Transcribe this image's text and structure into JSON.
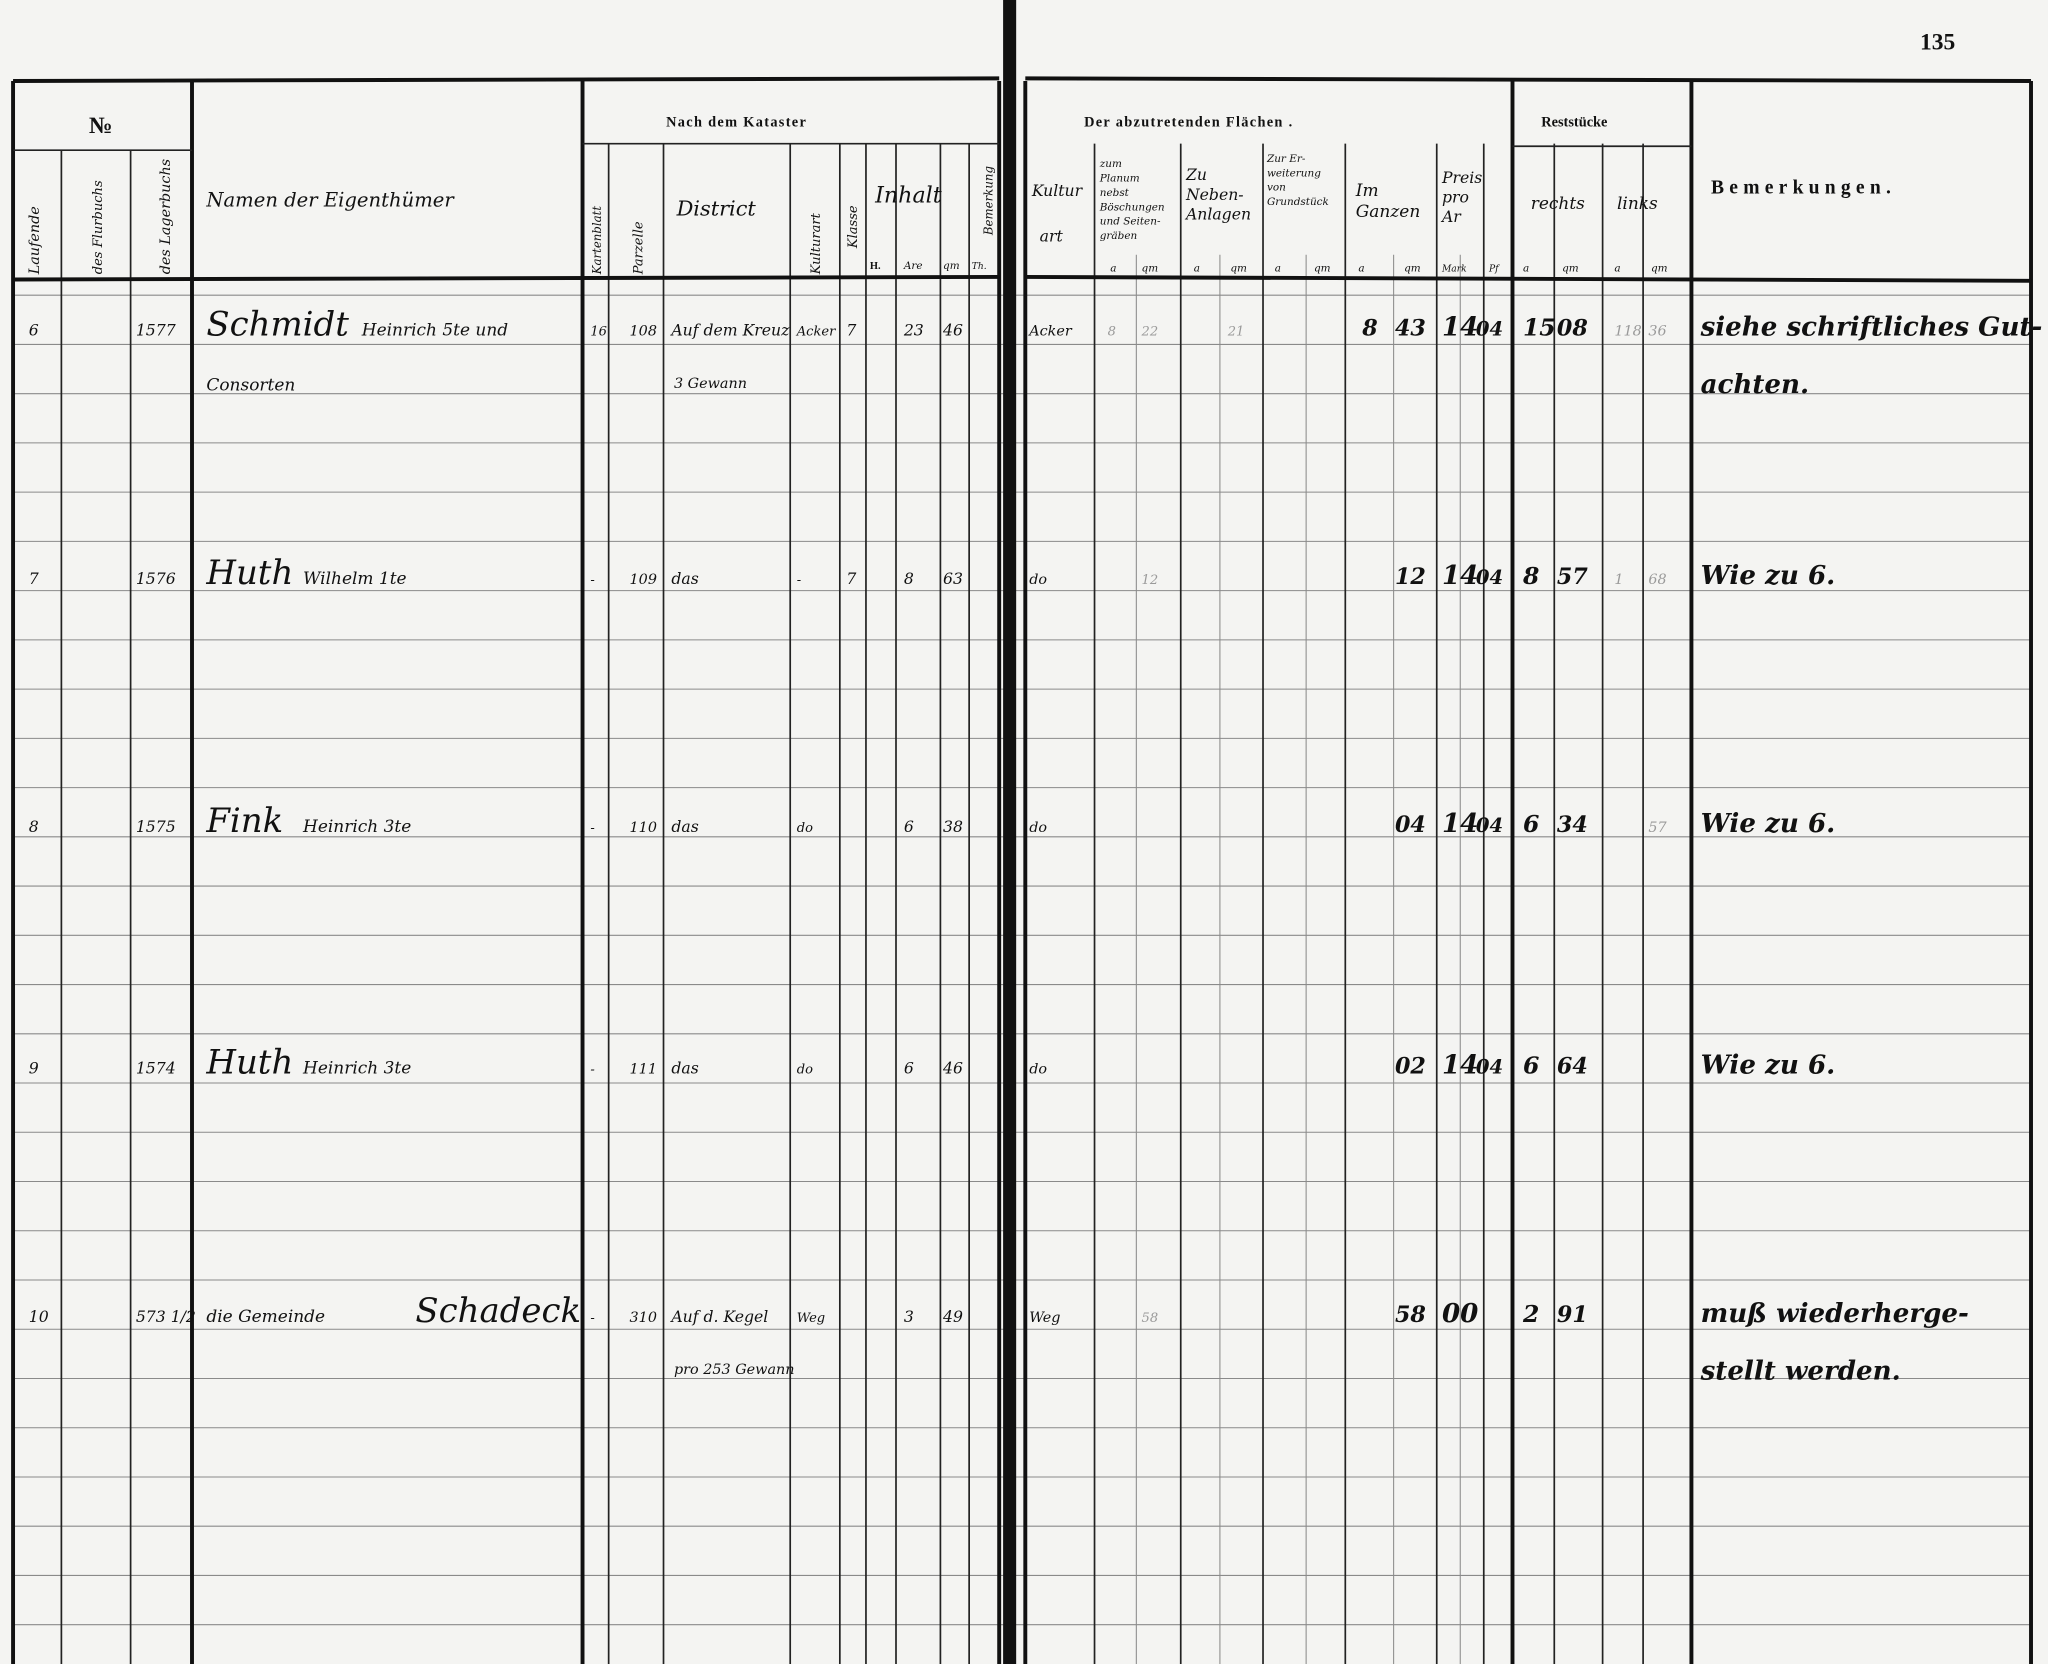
{
  "page_number": "135",
  "header": {
    "no": "№",
    "laufende": "Laufende",
    "flurbuch": "des Flurbuchs",
    "lagerbuch": "des Lagerbuchs",
    "name": "Namen der Eigenthümer",
    "kataster": "Nach dem Kataster",
    "kartenblatt": "Kartenblatt",
    "parzelle": "Parzelle",
    "district": "District",
    "kulturart": "Kulturart",
    "klasse": "Klasse",
    "inhalt": "Inhalt",
    "h": "H.",
    "are": "Are",
    "qm": "qm",
    "th": "Th.",
    "bemerkung": "Bemerkung",
    "flaechen": "Der abzutretenden Flächen .",
    "kulturart2a": "Kultur",
    "kulturart2b": "art",
    "planum": [
      "zum",
      "Planum",
      "nebst",
      "Böschungen",
      "und Seiten-",
      "gräben"
    ],
    "neben": [
      "Zu",
      "Neben-",
      "Anlagen"
    ],
    "erweiterung": [
      "Zur Er-",
      "weiterung",
      "von",
      "Grundstück"
    ],
    "ganzen": [
      "Im",
      "Ganzen"
    ],
    "preis": [
      "Preis",
      "pro",
      "Ar"
    ],
    "a": "a",
    "mark": "Mark",
    "pf": "Pf",
    "reststuecke": "Reststücke",
    "rechts": "rechts",
    "links": "links",
    "bemerkungen": "Bemerkungen."
  },
  "rows": [
    {
      "lfd": "6",
      "lager": "1577",
      "name": "Schmidt",
      "given": "Heinrich 5te und",
      "name2": "Consorten",
      "flur": "16",
      "parzelle": "108",
      "district": "Auf dem Kreuz",
      "district2": "3 Gewann",
      "kultur": "Acker",
      "klasse": "7",
      "are": "23",
      "qm": "46",
      "kultur2": "Acker",
      "planum_a": "8",
      "planum_qm": "22",
      "neben_a": "21",
      "ganz_a": "8",
      "ganz_qm": "43",
      "preis_m": "14",
      "preis_pf": "04",
      "rechts_a": "15",
      "rechts_qm": "08",
      "links_a": "118",
      "links_qm": "36",
      "bem": "siehe schriftliches Gut-",
      "bem2": "achten."
    },
    {
      "lfd": "7",
      "lager": "1576",
      "name": "Huth",
      "given": "Wilhelm 1te",
      "flur": "-",
      "parzelle": "109",
      "district": "das",
      "kultur": "-",
      "klasse": "7",
      "are": "8",
      "qm": "63",
      "kultur2": "do",
      "planum_qm": "12",
      "ganz_qm": "12",
      "preis_m": "14",
      "preis_pf": "04",
      "rechts_a": "8",
      "rechts_qm": "57",
      "links_a": "1",
      "links_qm": "68",
      "bem": "Wie zu 6."
    },
    {
      "lfd": "8",
      "lager": "1575",
      "name": "Fink",
      "given": "Heinrich 3te",
      "flur": "-",
      "parzelle": "110",
      "district": "das",
      "kultur": "do",
      "are": "6",
      "qm": "38",
      "kultur2": "do",
      "ganz_qm": "04",
      "preis_m": "14",
      "preis_pf": "04",
      "rechts_a": "6",
      "rechts_qm": "34",
      "links_qm": "57",
      "bem": "Wie zu 6."
    },
    {
      "lfd": "9",
      "lager": "1574",
      "name": "Huth",
      "given": "Heinrich 3te",
      "flur": "-",
      "parzelle": "111",
      "district": "das",
      "kultur": "do",
      "are": "6",
      "qm": "46",
      "kultur2": "do",
      "ganz_qm": "02",
      "preis_m": "14",
      "preis_pf": "04",
      "rechts_a": "6",
      "rechts_qm": "64",
      "bem": "Wie zu 6."
    },
    {
      "lfd": "10",
      "lager": "573 1/2",
      "name": "Schadeck",
      "given": "die Gemeinde",
      "flur": "-",
      "parzelle": "310",
      "district": "Auf d. Kegel",
      "district2": "pro 253 Gewann",
      "kultur": "Weg",
      "are": "3",
      "qm": "49",
      "kultur2": "Weg",
      "planum_qm": "58",
      "ganz_qm": "58",
      "preis_m": "00",
      "rechts_a": "2",
      "rechts_qm": "91",
      "bem": "muß wiederherge-",
      "bem2": "stellt werden."
    }
  ]
}
